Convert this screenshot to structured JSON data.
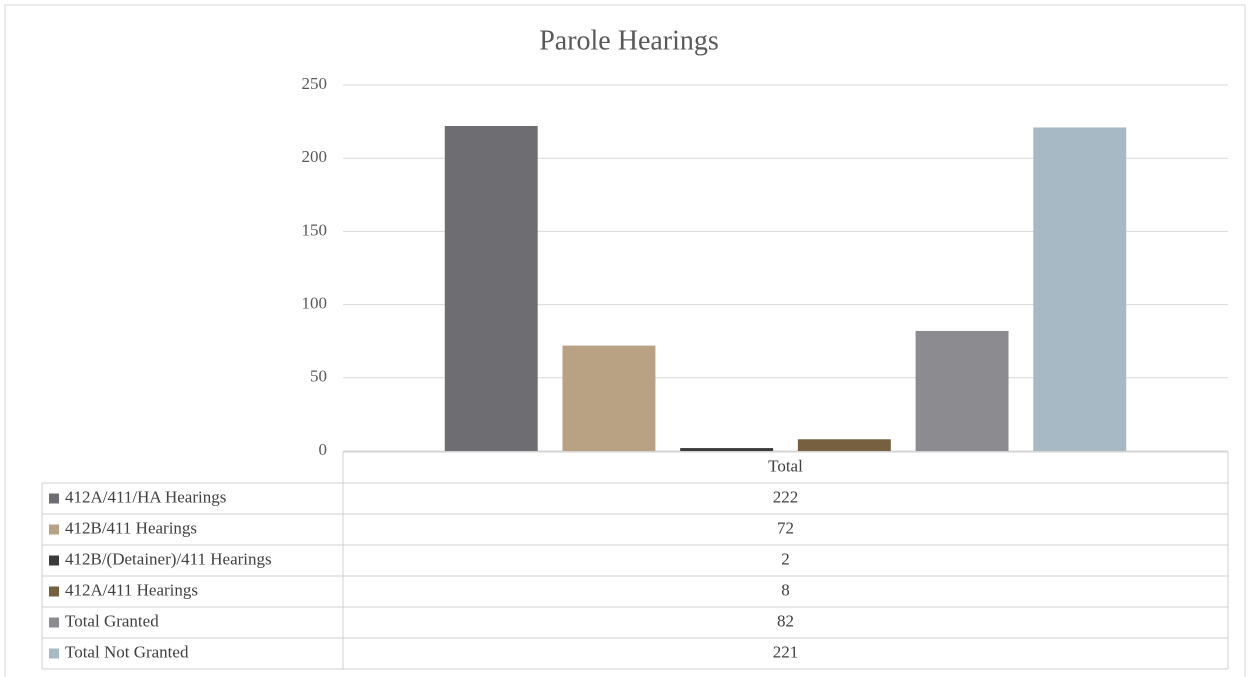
{
  "chart_data": {
    "type": "bar",
    "title": "Parole Hearings",
    "categories": [
      "Total"
    ],
    "series": [
      {
        "name": "412A/411/HA Hearings",
        "color": "#6e6d71",
        "values": [
          222
        ]
      },
      {
        "name": "412B/411 Hearings",
        "color": "#b9a184",
        "values": [
          72
        ]
      },
      {
        "name": "412B/(Detainer)/411 Hearings",
        "color": "#3b3b3b",
        "values": [
          2
        ]
      },
      {
        "name": "412A/411 Hearings",
        "color": "#76603f",
        "values": [
          8
        ]
      },
      {
        "name": "Total Granted",
        "color": "#8c8b90",
        "values": [
          82
        ]
      },
      {
        "name": "Total Not Granted",
        "color": "#a8b9c6",
        "values": [
          221
        ]
      }
    ],
    "ylim": [
      0,
      250
    ],
    "yticks": [
      0,
      50,
      100,
      150,
      200,
      250
    ],
    "grid": true,
    "legend": "table"
  }
}
